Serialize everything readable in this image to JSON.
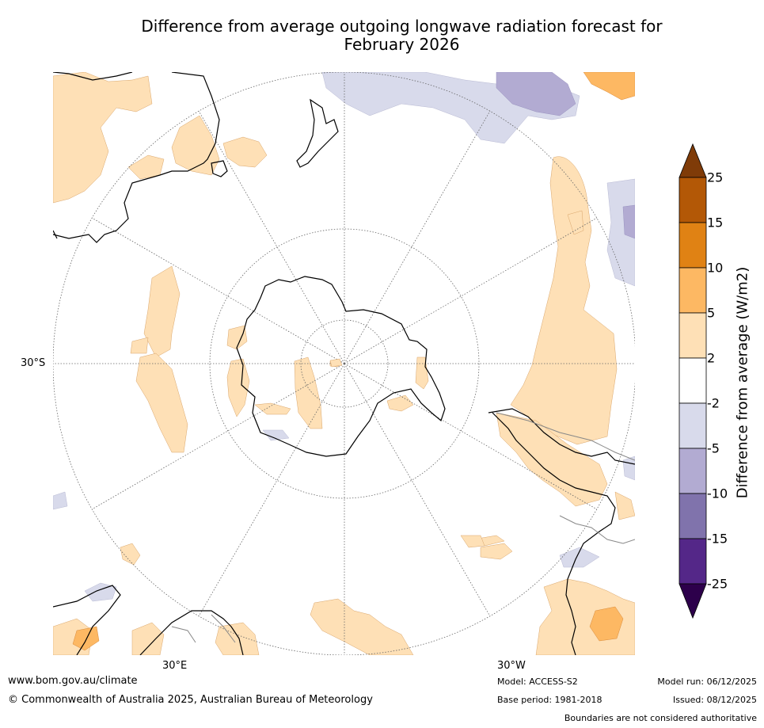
{
  "title_line1": "Difference from average outgoing longwave radiation forecast for",
  "title_line2": "February 2026",
  "map_labels": {
    "lat_30s": "30°S",
    "lon_30e": "30°E",
    "lon_30w": "30°W"
  },
  "legend": {
    "title": "Difference from average (W/m2)",
    "ticks": [
      "25",
      "15",
      "10",
      "5",
      "2",
      "-2",
      "-5",
      "-10",
      "-15",
      "-25"
    ],
    "colors": {
      "above_25": "#7f3b08",
      "15_25": "#b35806",
      "10_15": "#e08214",
      "5_10": "#fdb863",
      "2_5": "#fee0b6",
      "neutral": "#ffffff",
      "m2_m5": "#d8daeb",
      "m5_m10": "#b2abd2",
      "m10_m15": "#8073ac",
      "m15_m25": "#542788",
      "below_m25": "#2d004b"
    }
  },
  "footer": {
    "website": "www.bom.gov.au/climate",
    "copyright": "© Commonwealth of Australia 2025, Australian Bureau of Meteorology",
    "model": "Model: ACCESS-S2",
    "base_period": "Base period: 1981-2018",
    "model_run": "Model run: 06/12/2025",
    "issued": "Issued: 08/12/2025",
    "disclaimer": "Boundaries are not considered authoritative"
  }
}
